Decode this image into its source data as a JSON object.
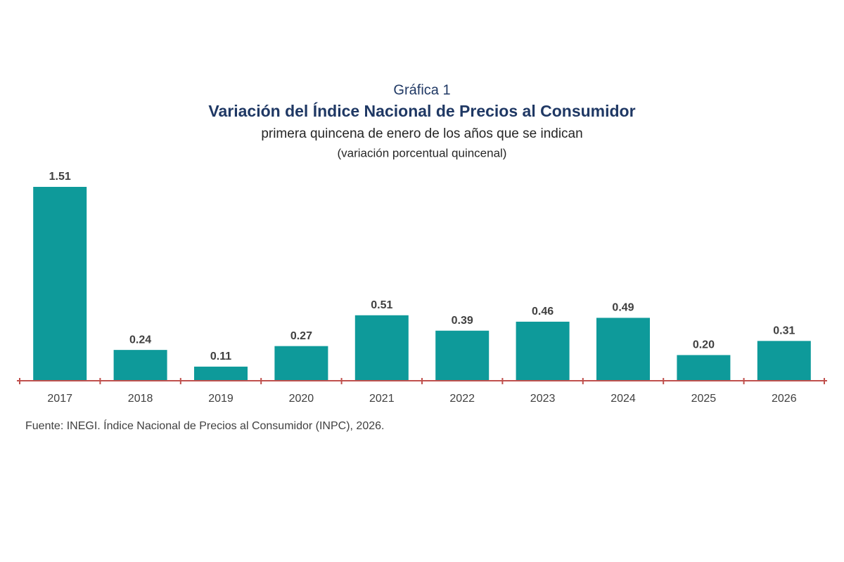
{
  "chart_data": {
    "type": "bar",
    "pretitle": "Gráfica 1",
    "title": "Variación del Índice Nacional de Precios al Consumidor",
    "subtitle": "primera quincena de enero de los años que se indican",
    "unit": "(variación porcentual quincenal)",
    "source": "Fuente: INEGI. Índice Nacional de Precios al Consumidor (INPC), 2026.",
    "categories": [
      "2017",
      "2018",
      "2019",
      "2020",
      "2021",
      "2022",
      "2023",
      "2024",
      "2025",
      "2026"
    ],
    "values": [
      1.51,
      0.24,
      0.11,
      0.27,
      0.51,
      0.39,
      0.46,
      0.49,
      0.2,
      0.31
    ],
    "value_labels": [
      "1.51",
      "0.24",
      "0.11",
      "0.27",
      "0.51",
      "0.39",
      "0.46",
      "0.49",
      "0.20",
      "0.31"
    ],
    "color": "#0e9a9a",
    "axis_color": "#c0504d"
  }
}
